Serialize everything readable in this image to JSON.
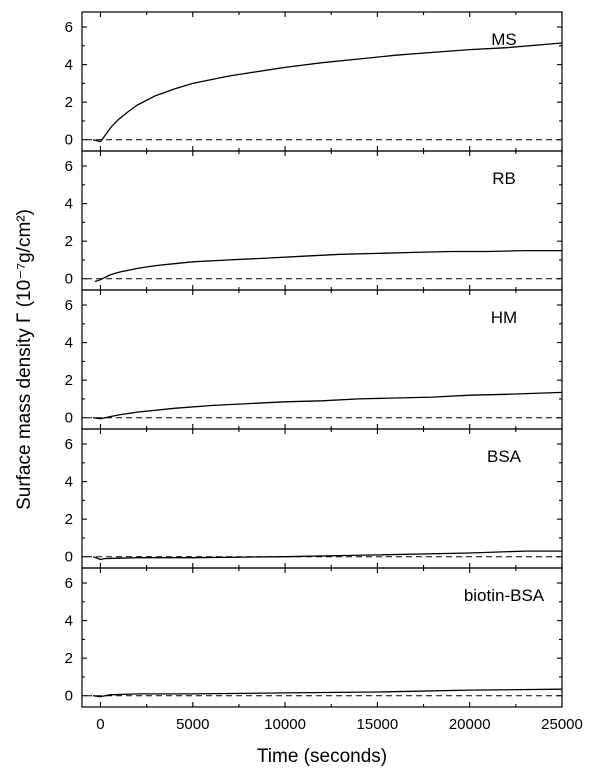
{
  "chart_data": {
    "type": "line",
    "xlabel": "Time (seconds)",
    "ylabel": "Surface mass density Γ (10⁻⁷g/cm²)",
    "xlim": [
      -1000,
      25000
    ],
    "ylim": [
      -0.6,
      6.8
    ],
    "x_ticks": [
      "0",
      "5000",
      "10000",
      "15000",
      "20000",
      "25000"
    ],
    "x_tick_values": [
      0,
      5000,
      10000,
      15000,
      20000,
      25000
    ],
    "y_ticks": [
      "0",
      "2",
      "4",
      "6"
    ],
    "y_tick_values": [
      0,
      2,
      4,
      6
    ],
    "reference_line": {
      "y": 0,
      "style": "dashed"
    },
    "panels": [
      {
        "label": "MS",
        "x": [
          -400,
          0,
          300,
          600,
          1000,
          1500,
          2000,
          3000,
          4000,
          5000,
          6000,
          7000,
          8000,
          9000,
          10000,
          12000,
          14000,
          16000,
          18000,
          20000,
          22000,
          25000
        ],
        "y": [
          0,
          -0.1,
          0.3,
          0.7,
          1.1,
          1.5,
          1.85,
          2.35,
          2.7,
          3.0,
          3.2,
          3.4,
          3.55,
          3.7,
          3.85,
          4.1,
          4.3,
          4.5,
          4.65,
          4.8,
          4.9,
          5.15
        ]
      },
      {
        "label": "RB",
        "x": [
          -300,
          0,
          500,
          1000,
          2000,
          3000,
          4000,
          5000,
          7000,
          9000,
          11000,
          13000,
          15000,
          17000,
          19000,
          21000,
          23000,
          25000
        ],
        "y": [
          -0.15,
          -0.05,
          0.2,
          0.35,
          0.55,
          0.7,
          0.8,
          0.9,
          1.0,
          1.1,
          1.2,
          1.3,
          1.35,
          1.4,
          1.45,
          1.45,
          1.5,
          1.5
        ]
      },
      {
        "label": "HM",
        "x": [
          -400,
          0,
          500,
          1000,
          2000,
          4000,
          6000,
          8000,
          10000,
          12000,
          14000,
          16000,
          18000,
          20000,
          22000,
          25000
        ],
        "y": [
          0,
          -0.05,
          0.05,
          0.15,
          0.3,
          0.5,
          0.65,
          0.75,
          0.85,
          0.9,
          1.0,
          1.05,
          1.1,
          1.2,
          1.25,
          1.35
        ]
      },
      {
        "label": "BSA",
        "x": [
          -400,
          0,
          200,
          2000,
          5000,
          10000,
          15000,
          20000,
          23000,
          25000
        ],
        "y": [
          0,
          -0.15,
          -0.1,
          -0.05,
          -0.05,
          0.0,
          0.1,
          0.2,
          0.3,
          0.3
        ]
      },
      {
        "label": "biotin-BSA",
        "x": [
          -400,
          0,
          500,
          2000,
          5000,
          10000,
          15000,
          20000,
          25000
        ],
        "y": [
          0,
          -0.05,
          0.05,
          0.1,
          0.1,
          0.15,
          0.2,
          0.3,
          0.35
        ]
      }
    ]
  }
}
